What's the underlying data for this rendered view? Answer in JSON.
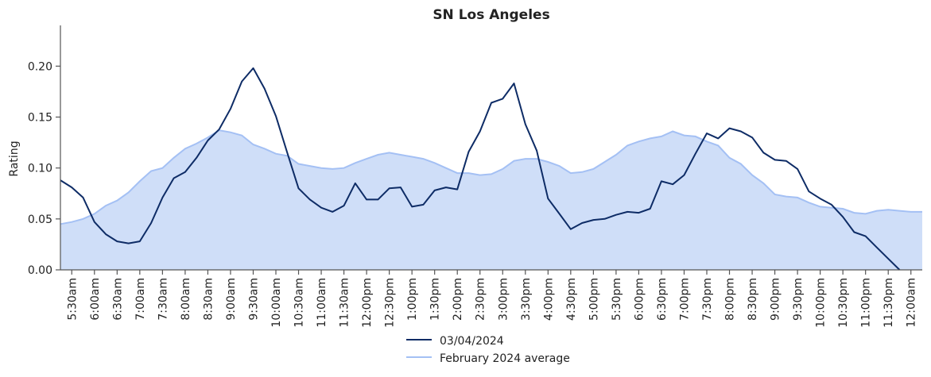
{
  "chart_data": {
    "type": "line",
    "title": "SN Los Angeles",
    "xlabel": "",
    "ylabel": "Rating",
    "ylim": [
      0,
      0.24
    ],
    "yticks": [
      "0.00",
      "0.05",
      "0.10",
      "0.15",
      "0.20"
    ],
    "x_step_minutes": 15,
    "x": [
      "5:15am",
      "5:30am",
      "5:45am",
      "6:00am",
      "6:15am",
      "6:30am",
      "6:45am",
      "7:00am",
      "7:15am",
      "7:30am",
      "7:45am",
      "8:00am",
      "8:15am",
      "8:30am",
      "8:45am",
      "9:00am",
      "9:15am",
      "9:30am",
      "9:45am",
      "10:00am",
      "10:15am",
      "10:30am",
      "10:45am",
      "11:00am",
      "11:15am",
      "11:30am",
      "11:45am",
      "12:00pm",
      "12:15pm",
      "12:30pm",
      "12:45pm",
      "1:00pm",
      "1:15pm",
      "1:30pm",
      "1:45pm",
      "2:00pm",
      "2:15pm",
      "2:30pm",
      "2:45pm",
      "3:00pm",
      "3:15pm",
      "3:30pm",
      "3:45pm",
      "4:00pm",
      "4:15pm",
      "4:30pm",
      "4:45pm",
      "5:00pm",
      "5:15pm",
      "5:30pm",
      "5:45pm",
      "6:00pm",
      "6:15pm",
      "6:30pm",
      "6:45pm",
      "7:00pm",
      "7:15pm",
      "7:30pm",
      "7:45pm",
      "8:00pm",
      "8:15pm",
      "8:30pm",
      "8:45pm",
      "9:00pm",
      "9:15pm",
      "9:30pm",
      "9:45pm",
      "10:00pm",
      "10:15pm",
      "10:30pm",
      "10:45pm",
      "11:00pm",
      "11:15pm",
      "11:30pm",
      "11:45pm",
      "12:00am",
      "12:15am"
    ],
    "tick_labels": [
      "5:30am",
      "6:00am",
      "6:30am",
      "7:00am",
      "7:30am",
      "8:00am",
      "8:30am",
      "9:00am",
      "9:30am",
      "10:00am",
      "10:30am",
      "11:00am",
      "11:30am",
      "12:00pm",
      "12:30pm",
      "1:00pm",
      "1:30pm",
      "2:00pm",
      "2:30pm",
      "3:00pm",
      "3:30pm",
      "4:00pm",
      "4:30pm",
      "5:00pm",
      "5:30pm",
      "6:00pm",
      "6:30pm",
      "7:00pm",
      "7:30pm",
      "8:00pm",
      "8:30pm",
      "9:00pm",
      "9:30pm",
      "10:00pm",
      "10:30pm",
      "11:00pm",
      "11:30pm",
      "12:00am"
    ],
    "series": [
      {
        "name": "03/04/2024",
        "style": "line",
        "color": "#0e2c66",
        "values": [
          0.088,
          0.081,
          0.071,
          0.047,
          0.035,
          0.028,
          0.026,
          0.028,
          0.046,
          0.071,
          0.09,
          0.096,
          0.11,
          0.127,
          0.138,
          0.158,
          0.185,
          0.198,
          0.178,
          0.151,
          0.115,
          0.08,
          0.069,
          0.061,
          0.057,
          0.063,
          0.085,
          0.069,
          0.069,
          0.08,
          0.081,
          0.062,
          0.064,
          0.078,
          0.081,
          0.079,
          0.116,
          0.136,
          0.164,
          0.168,
          0.183,
          0.143,
          0.117,
          0.07,
          0.055,
          0.04,
          0.046,
          0.049,
          0.05,
          0.054,
          0.057,
          0.056,
          0.06,
          0.087,
          0.084,
          0.093,
          0.114,
          0.134,
          0.129,
          0.139,
          0.136,
          0.13,
          0.115,
          0.108,
          0.107,
          0.099,
          0.077,
          0.07,
          0.064,
          0.052,
          0.037,
          0.033,
          0.022,
          0.011,
          0.0,
          null,
          null
        ]
      },
      {
        "name": "February 2024 average",
        "style": "area",
        "color": "#a4c0f4",
        "fill": "#cfdef8",
        "values": [
          0.045,
          0.047,
          0.05,
          0.055,
          0.063,
          0.068,
          0.076,
          0.087,
          0.097,
          0.1,
          0.11,
          0.119,
          0.124,
          0.13,
          0.137,
          0.135,
          0.132,
          0.123,
          0.119,
          0.114,
          0.112,
          0.104,
          0.102,
          0.1,
          0.099,
          0.1,
          0.105,
          0.109,
          0.113,
          0.115,
          0.113,
          0.111,
          0.109,
          0.105,
          0.1,
          0.095,
          0.095,
          0.093,
          0.094,
          0.099,
          0.107,
          0.109,
          0.109,
          0.106,
          0.102,
          0.095,
          0.096,
          0.099,
          0.106,
          0.113,
          0.122,
          0.126,
          0.129,
          0.131,
          0.136,
          0.132,
          0.131,
          0.126,
          0.122,
          0.11,
          0.104,
          0.093,
          0.085,
          0.074,
          0.072,
          0.071,
          0.066,
          0.062,
          0.061,
          0.06,
          0.056,
          0.055,
          0.058,
          0.059,
          0.058,
          0.057,
          0.057
        ]
      }
    ],
    "grid": false,
    "legend_position": "bottom-center"
  }
}
